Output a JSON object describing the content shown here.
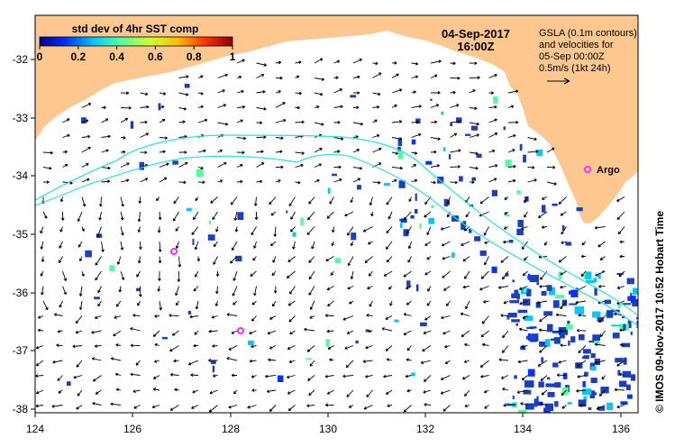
{
  "colorbar": {
    "title": "std dev of 4hr SST comp",
    "ticks": [
      "0",
      "0.2",
      "0.4",
      "0.6",
      "0.8",
      "1"
    ],
    "colors": [
      "#00008f",
      "#0033ff",
      "#00c8ff",
      "#50ff9f",
      "#d0ff2f",
      "#ffbf00",
      "#ff3000",
      "#8f0000"
    ]
  },
  "date": "04-Sep-2017",
  "time": "16:00Z",
  "legend": {
    "line1": "GSLA (0.1m contours)",
    "line2": "and velocities for",
    "line3": "05-Sep 00:00Z",
    "line4": "0.5m/s (1kt 24h)"
  },
  "argo_label": "Argo",
  "credit": "© IMOS 09-Nov-2017 10:52 Hobart Time",
  "axes": {
    "x_ticks": [
      "124",
      "126",
      "128",
      "130",
      "132",
      "134",
      "136"
    ],
    "y_ticks": [
      "-32",
      "-33",
      "-34",
      "-35",
      "-36",
      "-37",
      "-38"
    ]
  },
  "colors": {
    "land": "#fdc890",
    "contour": "#27e0e8",
    "argo": "#ff2bff",
    "sst_patch": "#1a3fbf"
  }
}
